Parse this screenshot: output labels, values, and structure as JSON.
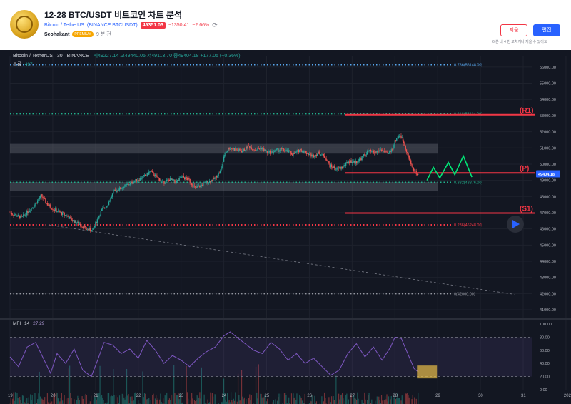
{
  "header": {
    "title": "12-28 BTC/USDT 비트코인 차트 분석",
    "symbol_name": "Bitcoin / TetherUS",
    "exchange": "(BINANCE:BTCUSDT)",
    "price": "49351.03",
    "change": "−1350.41",
    "change_pct": "−2.66%",
    "author": "Seohakant",
    "badge": "PREMIUM",
    "posted": "9 분 전",
    "delete_label": "지움",
    "edit_label": "편집",
    "edit_note": "6 분 내 4 번 고치거나 지울 수 있어요"
  },
  "colors": {
    "background": "#131722",
    "up": "#26a69a",
    "down": "#ef5350",
    "level_red": "#f23645",
    "fib_blue": "#5aa9f0",
    "fib_green": "#22b08c",
    "mfi_line": "#7e57c2",
    "forecast_green": "#00e676",
    "price_tag": "#2962ff"
  },
  "chart_data": {
    "type": "candlestick",
    "legend": {
      "symbol": "Bitcoin / TetherUS",
      "interval": "30",
      "exchange": "BINANCE",
      "ohlc": "시49227.14 고49440.05 저49113.70 종49404.18 +177.05 (+0.36%)",
      "volume_label": "볼륨",
      "volume_value": "497"
    },
    "x_ticks": [
      "19",
      "20",
      "21",
      "22",
      "23",
      "24",
      "25",
      "26",
      "27",
      "28",
      "29",
      "30",
      "31",
      "2021"
    ],
    "x_range": [
      19,
      31.2
    ],
    "y_ticks": [
      41000,
      42000,
      43000,
      44000,
      45000,
      46000,
      47000,
      48000,
      49000,
      50000,
      51000,
      52000,
      53000,
      54000,
      55000,
      56000
    ],
    "y_tick_labels": [
      "41000.00",
      "42000.00",
      "43000.00",
      "44000.00",
      "45000.00",
      "46000.00",
      "47000.00",
      "48000.00",
      "49000.00",
      "50000.00",
      "51000.00",
      "52000.00",
      "53000.00",
      "54000.00",
      "55000.00",
      "56000.00"
    ],
    "y_range": [
      40650,
      56700
    ],
    "last_price": "49404.18",
    "last_price_value": 49404.18,
    "price_path": [
      [
        19.0,
        47000
      ],
      [
        19.15,
        46850
      ],
      [
        19.3,
        46700
      ],
      [
        19.45,
        47100
      ],
      [
        19.6,
        47500
      ],
      [
        19.75,
        48050
      ],
      [
        19.9,
        47500
      ],
      [
        20.05,
        47200
      ],
      [
        20.2,
        47000
      ],
      [
        20.35,
        46800
      ],
      [
        20.5,
        46500
      ],
      [
        20.65,
        46300
      ],
      [
        20.8,
        46000
      ],
      [
        20.95,
        45900
      ],
      [
        21.05,
        46500
      ],
      [
        21.15,
        47100
      ],
      [
        21.3,
        47500
      ],
      [
        21.45,
        48300
      ],
      [
        21.6,
        48500
      ],
      [
        21.75,
        48700
      ],
      [
        21.9,
        48900
      ],
      [
        22.05,
        49100
      ],
      [
        22.2,
        49300
      ],
      [
        22.3,
        49550
      ],
      [
        22.45,
        49200
      ],
      [
        22.6,
        48850
      ],
      [
        22.75,
        49050
      ],
      [
        22.9,
        48900
      ],
      [
        23.05,
        49200
      ],
      [
        23.2,
        49050
      ],
      [
        23.35,
        48500
      ],
      [
        23.5,
        48700
      ],
      [
        23.65,
        48900
      ],
      [
        23.8,
        49100
      ],
      [
        23.95,
        49600
      ],
      [
        24.05,
        50700
      ],
      [
        24.15,
        51000
      ],
      [
        24.3,
        50900
      ],
      [
        24.45,
        50800
      ],
      [
        24.6,
        51100
      ],
      [
        24.75,
        50900
      ],
      [
        24.9,
        51000
      ],
      [
        25.05,
        50700
      ],
      [
        25.2,
        50800
      ],
      [
        25.35,
        50900
      ],
      [
        25.5,
        50800
      ],
      [
        25.65,
        50600
      ],
      [
        25.8,
        50900
      ],
      [
        25.95,
        50700
      ],
      [
        26.1,
        50500
      ],
      [
        26.25,
        50700
      ],
      [
        26.4,
        50400
      ],
      [
        26.5,
        49900
      ],
      [
        26.65,
        49700
      ],
      [
        26.8,
        49800
      ],
      [
        26.95,
        50200
      ],
      [
        27.1,
        50100
      ],
      [
        27.25,
        50400
      ],
      [
        27.4,
        50800
      ],
      [
        27.55,
        50700
      ],
      [
        27.7,
        50900
      ],
      [
        27.85,
        50600
      ],
      [
        27.95,
        50900
      ],
      [
        28.05,
        51600
      ],
      [
        28.15,
        51800
      ],
      [
        28.25,
        51200
      ],
      [
        28.35,
        50300
      ],
      [
        28.45,
        49700
      ],
      [
        28.55,
        49351
      ]
    ],
    "fib_levels": [
      {
        "label": "0.786(56148.00)",
        "price": 56148
      },
      {
        "label": "0.618(53114.00)",
        "price": 53114
      },
      {
        "label": "0.382(48876.00)",
        "price": 48876
      },
      {
        "label": "0.236(46248.00)",
        "price": 46248
      },
      {
        "label": "0(42000.00)",
        "price": 42000
      }
    ],
    "pivot_levels": [
      {
        "label": "(R1)",
        "price": 53050
      },
      {
        "label": "(P)",
        "price": 49460
      },
      {
        "label": "(S1)",
        "price": 46980
      }
    ],
    "zones": [
      {
        "from": 50650,
        "to": 51250
      },
      {
        "from": 48350,
        "to": 48900
      }
    ],
    "trendline": [
      [
        19.9,
        46250
      ],
      [
        30.8,
        41950
      ]
    ],
    "forecast_path": [
      [
        28.75,
        49000
      ],
      [
        28.9,
        49800
      ],
      [
        29.05,
        49150
      ],
      [
        29.25,
        50100
      ],
      [
        29.4,
        49350
      ],
      [
        29.6,
        50500
      ],
      [
        29.8,
        49200
      ]
    ],
    "mfi": {
      "label": "MFI",
      "period": "14",
      "value": "27.29",
      "y_ticks": [
        "100.00",
        "80.00",
        "60.00",
        "40.00",
        "20.00",
        "0.00"
      ],
      "y_tick_values": [
        100,
        80,
        60,
        40,
        20,
        0
      ],
      "upper_band": 80,
      "lower_band": 20,
      "series": [
        [
          19.0,
          50
        ],
        [
          19.2,
          35
        ],
        [
          19.4,
          65
        ],
        [
          19.6,
          72
        ],
        [
          19.8,
          45
        ],
        [
          19.95,
          25
        ],
        [
          20.1,
          55
        ],
        [
          20.3,
          40
        ],
        [
          20.5,
          62
        ],
        [
          20.7,
          30
        ],
        [
          20.9,
          20
        ],
        [
          21.05,
          45
        ],
        [
          21.2,
          72
        ],
        [
          21.4,
          68
        ],
        [
          21.6,
          55
        ],
        [
          21.8,
          62
        ],
        [
          22.0,
          48
        ],
        [
          22.2,
          75
        ],
        [
          22.4,
          60
        ],
        [
          22.6,
          40
        ],
        [
          22.8,
          52
        ],
        [
          23.0,
          45
        ],
        [
          23.2,
          35
        ],
        [
          23.4,
          48
        ],
        [
          23.6,
          58
        ],
        [
          23.8,
          65
        ],
        [
          24.0,
          82
        ],
        [
          24.15,
          88
        ],
        [
          24.3,
          80
        ],
        [
          24.5,
          70
        ],
        [
          24.7,
          60
        ],
        [
          24.9,
          55
        ],
        [
          25.1,
          72
        ],
        [
          25.3,
          62
        ],
        [
          25.5,
          45
        ],
        [
          25.7,
          55
        ],
        [
          25.9,
          40
        ],
        [
          26.1,
          48
        ],
        [
          26.3,
          35
        ],
        [
          26.5,
          22
        ],
        [
          26.7,
          30
        ],
        [
          26.9,
          55
        ],
        [
          27.1,
          70
        ],
        [
          27.3,
          50
        ],
        [
          27.5,
          65
        ],
        [
          27.7,
          45
        ],
        [
          27.9,
          65
        ],
        [
          28.0,
          80
        ],
        [
          28.15,
          78
        ],
        [
          28.3,
          55
        ],
        [
          28.45,
          32
        ],
        [
          28.55,
          27
        ]
      ]
    }
  }
}
